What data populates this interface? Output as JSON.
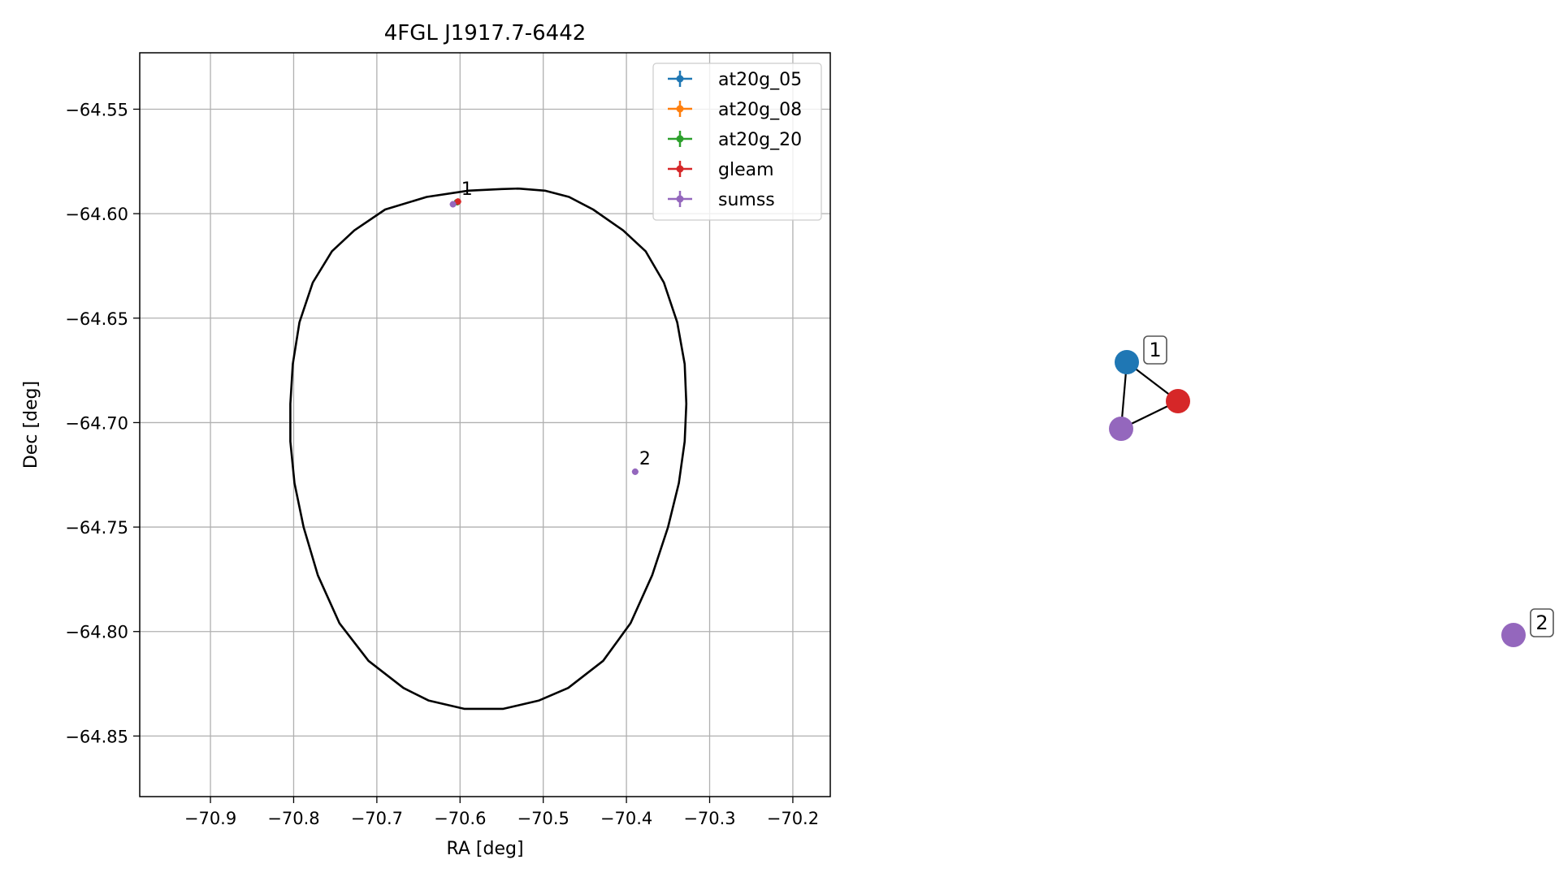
{
  "chart_data": [
    {
      "type": "scatter",
      "title": "4FGL J1917.7-6442",
      "xlabel": "RA [deg]",
      "ylabel": "Dec [deg]",
      "xlim": [
        -70.985,
        -70.155
      ],
      "ylim": [
        -64.879,
        -64.523
      ],
      "xticks": [
        -70.9,
        -70.8,
        -70.7,
        -70.6,
        -70.5,
        -70.4,
        -70.3,
        -70.2
      ],
      "xtick_labels": [
        "−70.9",
        "−70.8",
        "−70.7",
        "−70.6",
        "−70.5",
        "−70.4",
        "−70.3",
        "−70.2"
      ],
      "yticks": [
        -64.55,
        -64.6,
        -64.65,
        -64.7,
        -64.75,
        -64.8,
        -64.85
      ],
      "ytick_labels": [
        "−64.55",
        "−64.60",
        "−64.65",
        "−64.70",
        "−64.75",
        "−64.80",
        "−64.85"
      ],
      "grid": true,
      "legend_position": "top-right",
      "series": [
        {
          "name": "at20g_05",
          "color": "#1f77b4",
          "points": [
            {
              "x": -70.6035,
              "y": -64.5945
            }
          ]
        },
        {
          "name": "at20g_08",
          "color": "#ff7f0e",
          "points": [
            {
              "x": -70.6035,
              "y": -64.5945
            }
          ]
        },
        {
          "name": "at20g_20",
          "color": "#2ca02c",
          "points": [
            {
              "x": -70.6035,
              "y": -64.5945
            }
          ]
        },
        {
          "name": "gleam",
          "color": "#d62728",
          "points": [
            {
              "x": -70.6025,
              "y": -64.5942
            }
          ]
        },
        {
          "name": "sumss",
          "color": "#9467bd",
          "points": [
            {
              "x": -70.6085,
              "y": -64.5955
            },
            {
              "x": -70.3895,
              "y": -64.7235
            }
          ]
        }
      ],
      "annotations": [
        {
          "text": "1",
          "x": -70.6035,
          "y": -64.5945
        },
        {
          "text": "2",
          "x": -70.3895,
          "y": -64.7235
        }
      ],
      "ellipse": {
        "color": "#000000",
        "points": [
          [
            -70.53,
            -64.588
          ],
          [
            -70.498,
            -64.589
          ],
          [
            -70.469,
            -64.592
          ],
          [
            -70.44,
            -64.598
          ],
          [
            -70.404,
            -64.608
          ],
          [
            -70.377,
            -64.618
          ],
          [
            -70.355,
            -64.633
          ],
          [
            -70.339,
            -64.652
          ],
          [
            -70.33,
            -64.672
          ],
          [
            -70.328,
            -64.691
          ],
          [
            -70.33,
            -64.709
          ],
          [
            -70.337,
            -64.729
          ],
          [
            -70.35,
            -64.75
          ],
          [
            -70.369,
            -64.773
          ],
          [
            -70.395,
            -64.796
          ],
          [
            -70.428,
            -64.814
          ],
          [
            -70.47,
            -64.827
          ],
          [
            -70.505,
            -64.833
          ],
          [
            -70.548,
            -64.837
          ],
          [
            -70.595,
            -64.837
          ],
          [
            -70.638,
            -64.833
          ],
          [
            -70.668,
            -64.827
          ],
          [
            -70.71,
            -64.814
          ],
          [
            -70.745,
            -64.796
          ],
          [
            -70.771,
            -64.773
          ],
          [
            -70.788,
            -64.75
          ],
          [
            -70.799,
            -64.729
          ],
          [
            -70.804,
            -64.709
          ],
          [
            -70.804,
            -64.691
          ],
          [
            -70.801,
            -64.672
          ],
          [
            -70.793,
            -64.652
          ],
          [
            -70.777,
            -64.633
          ],
          [
            -70.754,
            -64.618
          ],
          [
            -70.727,
            -64.608
          ],
          [
            -70.69,
            -64.598
          ],
          [
            -70.64,
            -64.592
          ],
          [
            -70.59,
            -64.589
          ],
          [
            -70.55,
            -64.5882
          ],
          [
            -70.53,
            -64.588
          ]
        ]
      }
    },
    {
      "type": "network",
      "nodes": [
        {
          "id": "a",
          "label": "1",
          "color": "#1f77b4"
        },
        {
          "id": "b",
          "label": "",
          "color": "#d62728"
        },
        {
          "id": "c",
          "label": "",
          "color": "#9467bd"
        },
        {
          "id": "d",
          "label": "2",
          "color": "#9467bd"
        }
      ],
      "edges": [
        [
          "a",
          "b"
        ],
        [
          "a",
          "c"
        ],
        [
          "b",
          "c"
        ]
      ]
    }
  ]
}
